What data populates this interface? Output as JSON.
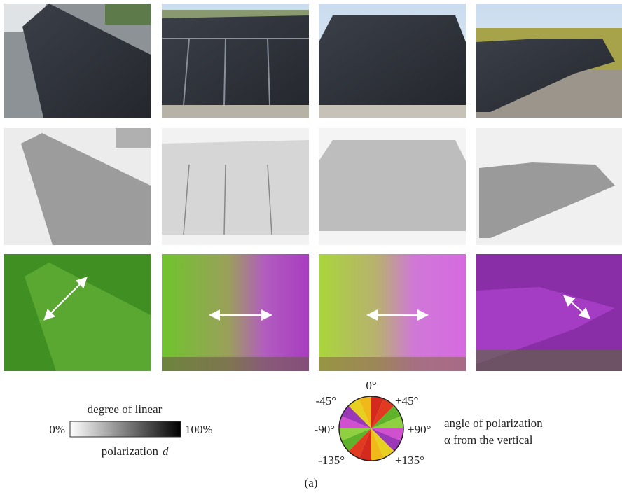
{
  "legend_degree": {
    "title": "degree of linear",
    "min_label": "0%",
    "max_label": "100%",
    "bottom_label": "polarization",
    "symbol": "d"
  },
  "legend_angle": {
    "top": "0°",
    "top_left": "-45°",
    "top_right": "+45°",
    "left": "-90°",
    "right": "+90°",
    "bottom_left": "-135°",
    "bottom_right": "+135°",
    "caption_line1": "angle of polarization",
    "caption_line2": "α from the vertical"
  },
  "caption": "(a)"
}
